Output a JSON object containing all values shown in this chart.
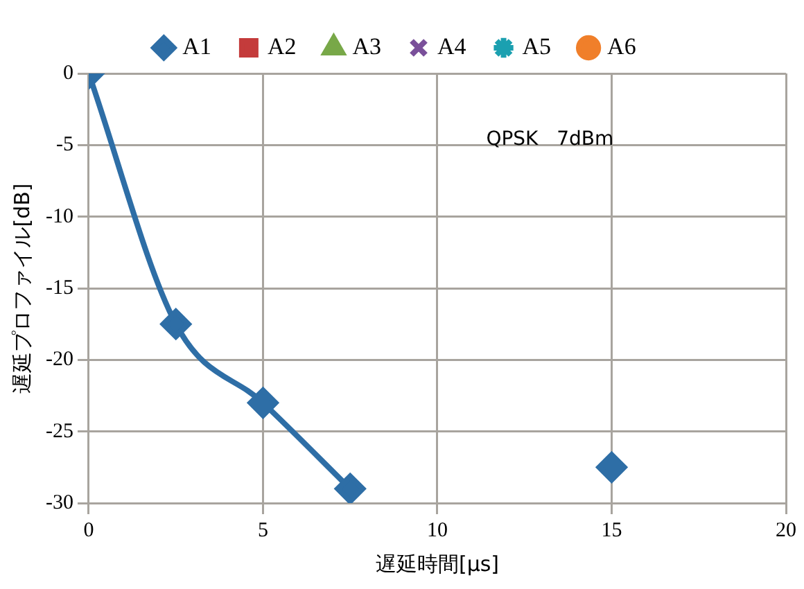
{
  "chart_data": {
    "type": "line",
    "x": [
      0,
      2.5,
      5,
      7.5,
      10,
      15
    ],
    "series": [
      {
        "name": "A1",
        "color": "#2e6ea6",
        "marker": "diamond",
        "values": [
          0,
          -17.5,
          -23,
          -29,
          null,
          -27.5
        ]
      },
      {
        "name": "A2",
        "color": "#c43b3b",
        "marker": "square",
        "values": [
          null,
          null,
          null,
          null,
          null,
          null
        ]
      },
      {
        "name": "A3",
        "color": "#78a848",
        "marker": "triangle",
        "values": [
          null,
          null,
          null,
          null,
          null,
          null
        ]
      },
      {
        "name": "A4",
        "color": "#7a509a",
        "marker": "cross",
        "values": [
          null,
          null,
          null,
          null,
          null,
          null
        ]
      },
      {
        "name": "A5",
        "color": "#1ba0b0",
        "marker": "star",
        "values": [
          null,
          null,
          null,
          null,
          null,
          null
        ]
      },
      {
        "name": "A6",
        "color": "#f07f2a",
        "marker": "circle",
        "values": [
          null,
          null,
          null,
          null,
          null,
          null
        ]
      }
    ],
    "xlabel": "遅延時間[μs]",
    "ylabel": "遅延プロファイル[dB]",
    "xlim": [
      0,
      20
    ],
    "xticks": [
      0,
      5,
      10,
      15,
      20
    ],
    "ylim": [
      -30,
      0
    ],
    "yticks": [
      0,
      -5,
      -10,
      -15,
      -20,
      -25,
      -30
    ],
    "annotations": [
      "QPSK   7dBm"
    ],
    "grid": true,
    "legend": "top"
  }
}
